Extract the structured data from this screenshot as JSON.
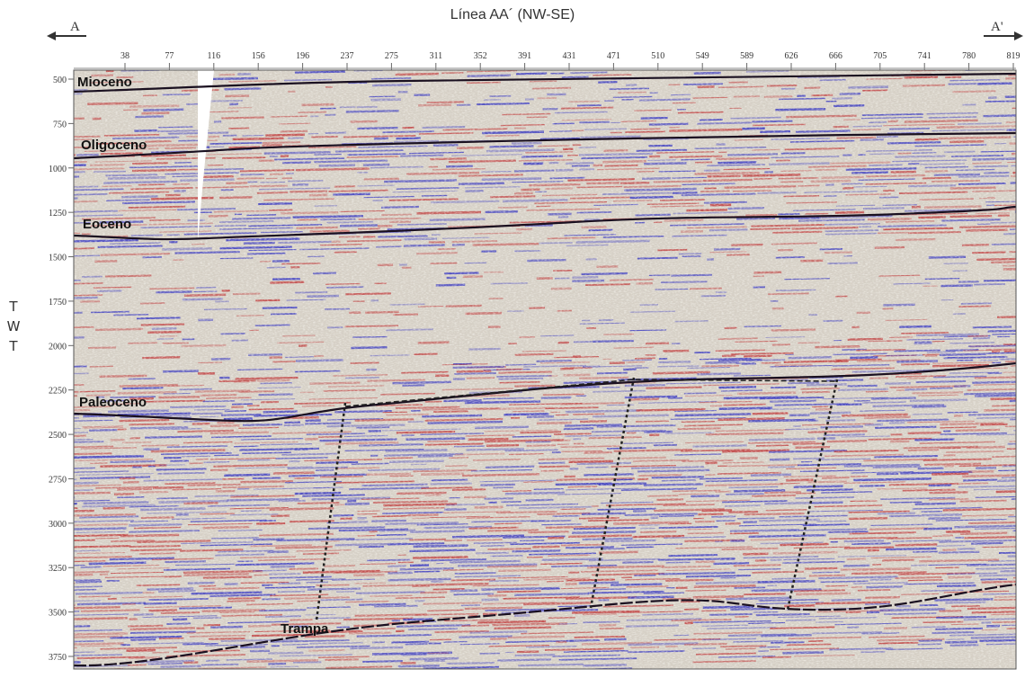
{
  "title": "Línea AA´ (NW-SE)",
  "endpoints": {
    "left": "A",
    "right": "A'"
  },
  "y_axis_label": "T W T",
  "x_ticks": [
    "38",
    "77",
    "116",
    "156",
    "196",
    "237",
    "275",
    "311",
    "352",
    "391",
    "431",
    "471",
    "510",
    "549",
    "589",
    "626",
    "666",
    "705",
    "741",
    "780",
    "819"
  ],
  "y_ticks": [
    "500",
    "750",
    "1000",
    "1250",
    "1500",
    "1750",
    "2000",
    "2250",
    "2500",
    "2750",
    "3000",
    "3250",
    "3500",
    "3750"
  ],
  "horizons": [
    {
      "name": "Mioceno",
      "color": "#1a1020"
    },
    {
      "name": "Oligoceno",
      "color": "#1a1020"
    },
    {
      "name": "Eoceno",
      "color": "#1a1020"
    },
    {
      "name": "Paleoceno",
      "color": "#1a1020"
    },
    {
      "name": "Trampa",
      "color": "#1a1020"
    }
  ],
  "colors": {
    "seismic_background": "#d6d0c6",
    "trough": "#3a3ac0",
    "peak": "#c04040",
    "fault": "#222222"
  }
}
